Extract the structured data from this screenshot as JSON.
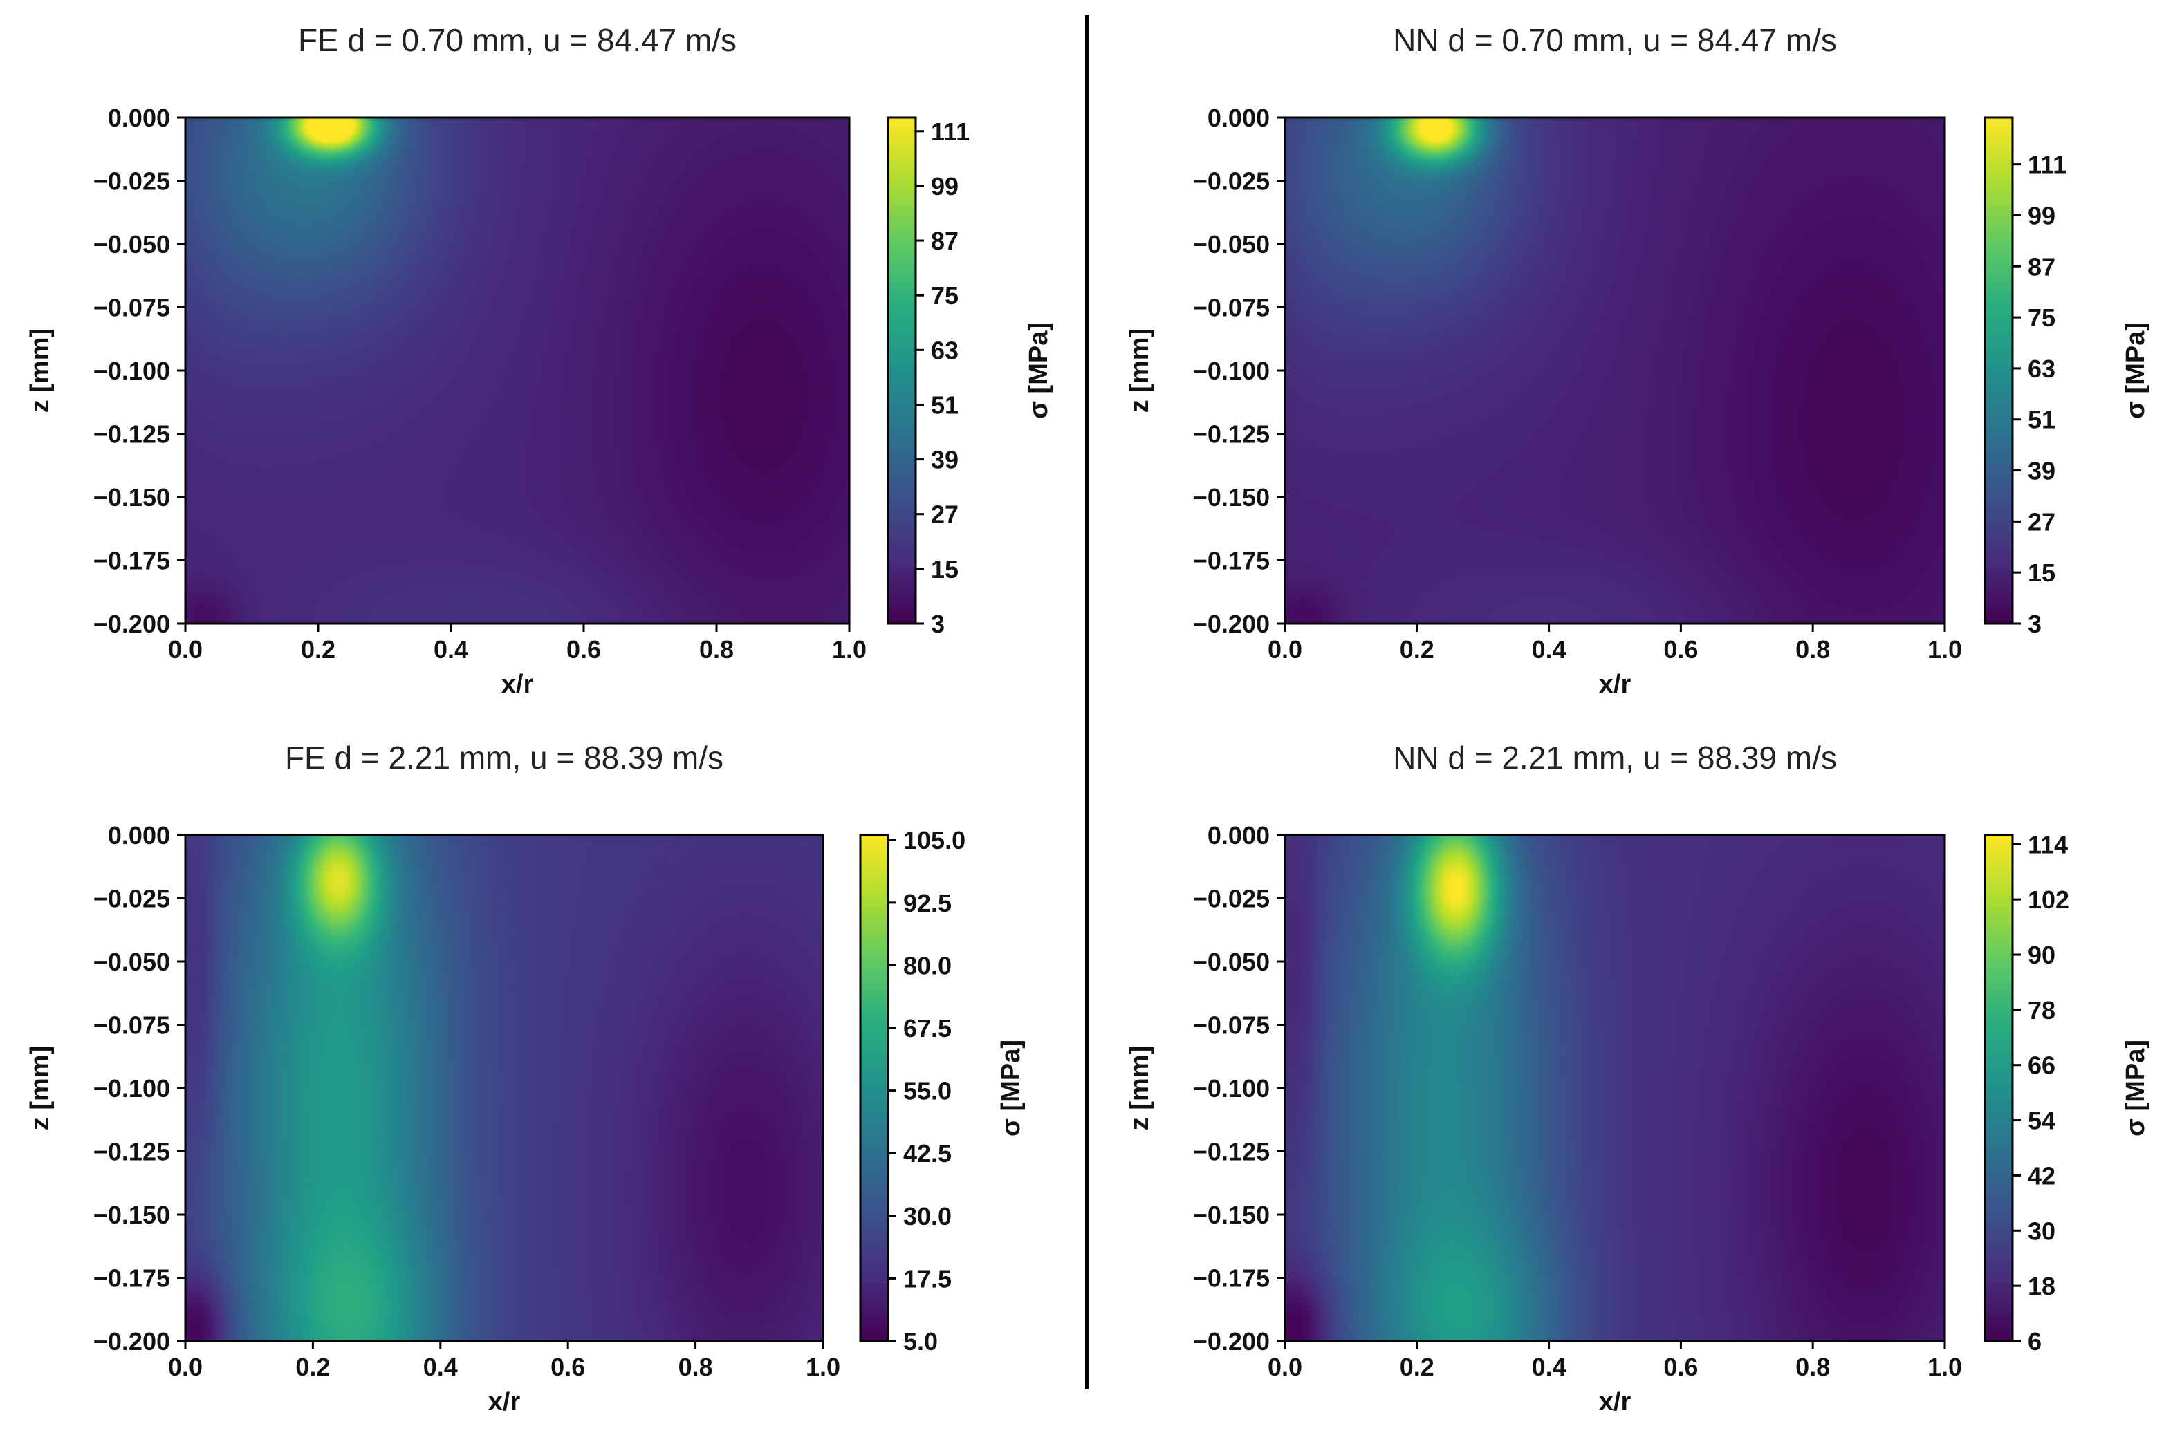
{
  "chart_data": [
    {
      "type": "heatmap",
      "title": "FE d = 0.70 mm, u = 84.47 m/s",
      "xlabel": "x/r",
      "ylabel": "z [mm]",
      "colorbar_label": "σ [MPa]",
      "colormap": "viridis",
      "xlim": [
        0.0,
        1.0
      ],
      "ylim": [
        -0.2,
        0.0
      ],
      "x_ticks": [
        "0.0",
        "0.2",
        "0.4",
        "0.6",
        "0.8",
        "1.0"
      ],
      "y_ticks": [
        "0.000",
        "−0.025",
        "−0.050",
        "−0.075",
        "−0.100",
        "−0.125",
        "−0.150",
        "−0.175",
        "−0.200"
      ],
      "colorbar_range": [
        3,
        114
      ],
      "colorbar_ticks": [
        {
          "value": 3,
          "label": "3"
        },
        {
          "value": 15,
          "label": "15"
        },
        {
          "value": 27,
          "label": "27"
        },
        {
          "value": 39,
          "label": "39"
        },
        {
          "value": 51,
          "label": "51"
        },
        {
          "value": 63,
          "label": "63"
        },
        {
          "value": 75,
          "label": "75"
        },
        {
          "value": 87,
          "label": "87"
        },
        {
          "value": 99,
          "label": "99"
        },
        {
          "value": 111,
          "label": "111"
        }
      ],
      "field": {
        "background": 14,
        "blobs": [
          {
            "x": 0.22,
            "z": -0.003,
            "sx": 0.045,
            "sz": 0.008,
            "a": 97
          },
          {
            "x": 0.2,
            "z": -0.02,
            "sx": 0.11,
            "sz": 0.035,
            "a": 22
          },
          {
            "x": 0.18,
            "z": -0.01,
            "sx": 0.2,
            "sz": 0.075,
            "a": 10
          },
          {
            "x": 0.05,
            "z": -0.03,
            "sx": 0.08,
            "sz": 0.05,
            "a": 5
          },
          {
            "x": 0.45,
            "z": -0.2,
            "sx": 0.2,
            "sz": 0.02,
            "a": 5
          },
          {
            "x": 0.87,
            "z": -0.11,
            "sx": 0.16,
            "sz": 0.075,
            "a": -9
          },
          {
            "x": 0.03,
            "z": -0.197,
            "sx": 0.035,
            "sz": 0.008,
            "a": -8
          }
        ]
      }
    },
    {
      "type": "heatmap",
      "title": "NN d = 0.70 mm, u = 84.47 m/s",
      "xlabel": "x/r",
      "ylabel": "z [mm]",
      "colorbar_label": "σ [MPa]",
      "colormap": "viridis",
      "xlim": [
        0.0,
        1.0
      ],
      "ylim": [
        -0.2,
        0.0
      ],
      "x_ticks": [
        "0.0",
        "0.2",
        "0.4",
        "0.6",
        "0.8",
        "1.0"
      ],
      "y_ticks": [
        "0.000",
        "−0.025",
        "−0.050",
        "−0.075",
        "−0.100",
        "−0.125",
        "−0.150",
        "−0.175",
        "−0.200"
      ],
      "colorbar_range": [
        3,
        122
      ],
      "colorbar_ticks": [
        {
          "value": 3,
          "label": "3"
        },
        {
          "value": 15,
          "label": "15"
        },
        {
          "value": 27,
          "label": "27"
        },
        {
          "value": 39,
          "label": "39"
        },
        {
          "value": 51,
          "label": "51"
        },
        {
          "value": 63,
          "label": "63"
        },
        {
          "value": 75,
          "label": "75"
        },
        {
          "value": 87,
          "label": "87"
        },
        {
          "value": 99,
          "label": "99"
        },
        {
          "value": 111,
          "label": "111"
        }
      ],
      "field": {
        "background": 13,
        "blobs": [
          {
            "x": 0.23,
            "z": -0.004,
            "sx": 0.045,
            "sz": 0.009,
            "a": 92
          },
          {
            "x": 0.2,
            "z": -0.02,
            "sx": 0.11,
            "sz": 0.035,
            "a": 22
          },
          {
            "x": 0.17,
            "z": -0.01,
            "sx": 0.2,
            "sz": 0.075,
            "a": 10
          },
          {
            "x": 0.05,
            "z": -0.03,
            "sx": 0.08,
            "sz": 0.05,
            "a": 5
          },
          {
            "x": 0.42,
            "z": -0.2,
            "sx": 0.2,
            "sz": 0.02,
            "a": 5
          },
          {
            "x": 0.86,
            "z": -0.12,
            "sx": 0.16,
            "sz": 0.08,
            "a": -8
          },
          {
            "x": 0.03,
            "z": -0.197,
            "sx": 0.035,
            "sz": 0.008,
            "a": -8
          }
        ]
      }
    },
    {
      "type": "heatmap",
      "title": "FE d = 2.21 mm, u = 88.39 m/s",
      "xlabel": "x/r",
      "ylabel": "z [mm]",
      "colorbar_label": "σ [MPa]",
      "colormap": "viridis",
      "xlim": [
        0.0,
        1.0
      ],
      "ylim": [
        -0.2,
        0.0
      ],
      "x_ticks": [
        "0.0",
        "0.2",
        "0.4",
        "0.6",
        "0.8",
        "1.0"
      ],
      "y_ticks": [
        "0.000",
        "−0.025",
        "−0.050",
        "−0.075",
        "−0.100",
        "−0.125",
        "−0.150",
        "−0.175",
        "−0.200"
      ],
      "colorbar_range": [
        5,
        106
      ],
      "colorbar_ticks": [
        {
          "value": 5,
          "label": "5.0"
        },
        {
          "value": 17.5,
          "label": "17.5"
        },
        {
          "value": 30,
          "label": "30.0"
        },
        {
          "value": 42.5,
          "label": "42.5"
        },
        {
          "value": 55,
          "label": "55.0"
        },
        {
          "value": 67.5,
          "label": "67.5"
        },
        {
          "value": 80,
          "label": "80.0"
        },
        {
          "value": 92.5,
          "label": "92.5"
        },
        {
          "value": 105,
          "label": "105.0"
        }
      ],
      "field": {
        "background": 22,
        "blobs": [
          {
            "x": 0.24,
            "z": -0.017,
            "sx": 0.045,
            "sz": 0.017,
            "a": 53
          },
          {
            "x": 0.24,
            "z": -0.1,
            "sx": 0.12,
            "sz": 0.1,
            "a": 38
          },
          {
            "x": 0.27,
            "z": -0.195,
            "sx": 0.1,
            "sz": 0.03,
            "a": 22
          },
          {
            "x": 0.88,
            "z": -0.14,
            "sx": 0.13,
            "sz": 0.075,
            "a": -13
          },
          {
            "x": 0.02,
            "z": -0.195,
            "sx": 0.035,
            "sz": 0.015,
            "a": -20
          },
          {
            "x": 0.02,
            "z": -0.06,
            "sx": 0.025,
            "sz": 0.05,
            "a": -8
          }
        ]
      }
    },
    {
      "type": "heatmap",
      "title": "NN d = 2.21 mm, u = 88.39 m/s",
      "xlabel": "x/r",
      "ylabel": "z [mm]",
      "colorbar_label": "σ [MPa]",
      "colormap": "viridis",
      "xlim": [
        0.0,
        1.0
      ],
      "ylim": [
        -0.2,
        0.0
      ],
      "x_ticks": [
        "0.0",
        "0.2",
        "0.4",
        "0.6",
        "0.8",
        "1.0"
      ],
      "y_ticks": [
        "0.000",
        "−0.025",
        "−0.050",
        "−0.075",
        "−0.100",
        "−0.125",
        "−0.150",
        "−0.175",
        "−0.200"
      ],
      "colorbar_range": [
        6,
        116
      ],
      "colorbar_ticks": [
        {
          "value": 6,
          "label": "6"
        },
        {
          "value": 18,
          "label": "18"
        },
        {
          "value": 30,
          "label": "30"
        },
        {
          "value": 42,
          "label": "42"
        },
        {
          "value": 54,
          "label": "54"
        },
        {
          "value": 66,
          "label": "66"
        },
        {
          "value": 78,
          "label": "78"
        },
        {
          "value": 90,
          "label": "90"
        },
        {
          "value": 102,
          "label": "102"
        },
        {
          "value": 114,
          "label": "114"
        }
      ],
      "field": {
        "background": 21,
        "blobs": [
          {
            "x": 0.26,
            "z": -0.02,
            "sx": 0.045,
            "sz": 0.02,
            "a": 70
          },
          {
            "x": 0.24,
            "z": -0.1,
            "sx": 0.12,
            "sz": 0.1,
            "a": 36
          },
          {
            "x": 0.28,
            "z": -0.195,
            "sx": 0.1,
            "sz": 0.03,
            "a": 24
          },
          {
            "x": 0.88,
            "z": -0.14,
            "sx": 0.13,
            "sz": 0.075,
            "a": -13
          },
          {
            "x": 0.02,
            "z": -0.195,
            "sx": 0.035,
            "sz": 0.015,
            "a": -19
          },
          {
            "x": 0.02,
            "z": -0.06,
            "sx": 0.025,
            "sz": 0.05,
            "a": -8
          }
        ]
      }
    }
  ]
}
